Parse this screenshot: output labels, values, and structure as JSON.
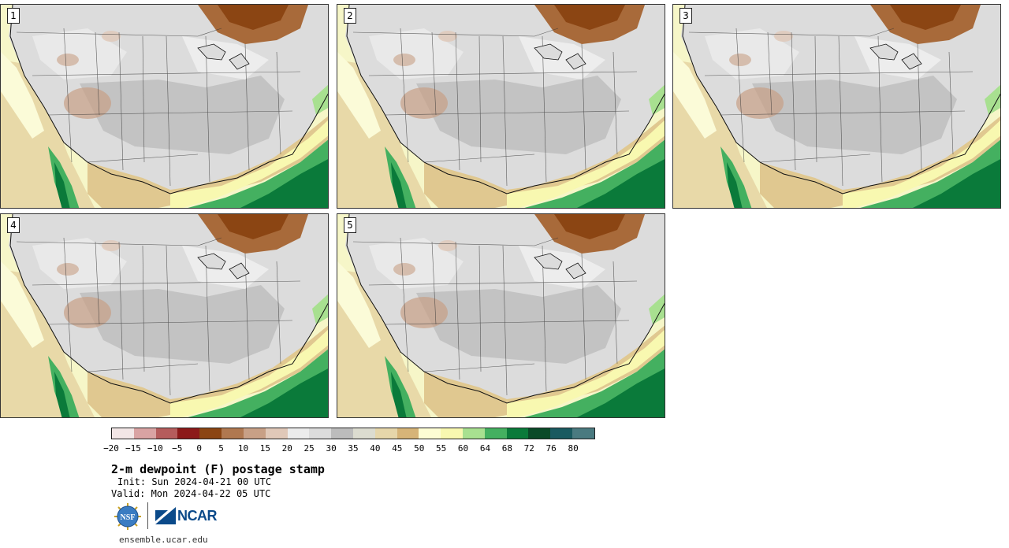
{
  "panels": [
    {
      "label": "1",
      "row": 0,
      "col": 0
    },
    {
      "label": "2",
      "row": 0,
      "col": 1
    },
    {
      "label": "3",
      "row": 0,
      "col": 2
    },
    {
      "label": "4",
      "row": 1,
      "col": 0
    },
    {
      "label": "5",
      "row": 1,
      "col": 1
    }
  ],
  "colorbar": {
    "ticks": [
      "−20",
      "−15",
      "−10",
      "−5",
      "0",
      "5",
      "10",
      "15",
      "20",
      "25",
      "30",
      "35",
      "40",
      "45",
      "50",
      "55",
      "60",
      "64",
      "68",
      "72",
      "76",
      "80"
    ],
    "colors": [
      "#f2e6e6",
      "#d9a3a3",
      "#b55c5c",
      "#8c1a1a",
      "#8b4513",
      "#b07850",
      "#c8a086",
      "#e0c8b8",
      "#ececec",
      "#dcdcdc",
      "#bcbcbc",
      "#dcdcd0",
      "#e6d6aa",
      "#d6b478",
      "#fdfdd4",
      "#f8f8b0",
      "#a8e090",
      "#44b060",
      "#0a7a3a",
      "#0a4a28",
      "#1a5a60",
      "#4a7a80"
    ]
  },
  "title": "2-m dewpoint (F) postage stamp",
  "init_line": "Init: Sun 2024-04-21 00 UTC",
  "valid_line": "Valid: Mon 2024-04-22 05 UTC",
  "site": "ensemble.ucar.edu",
  "logos": {
    "nsf": "NSF",
    "ncar": "NCAR"
  }
}
